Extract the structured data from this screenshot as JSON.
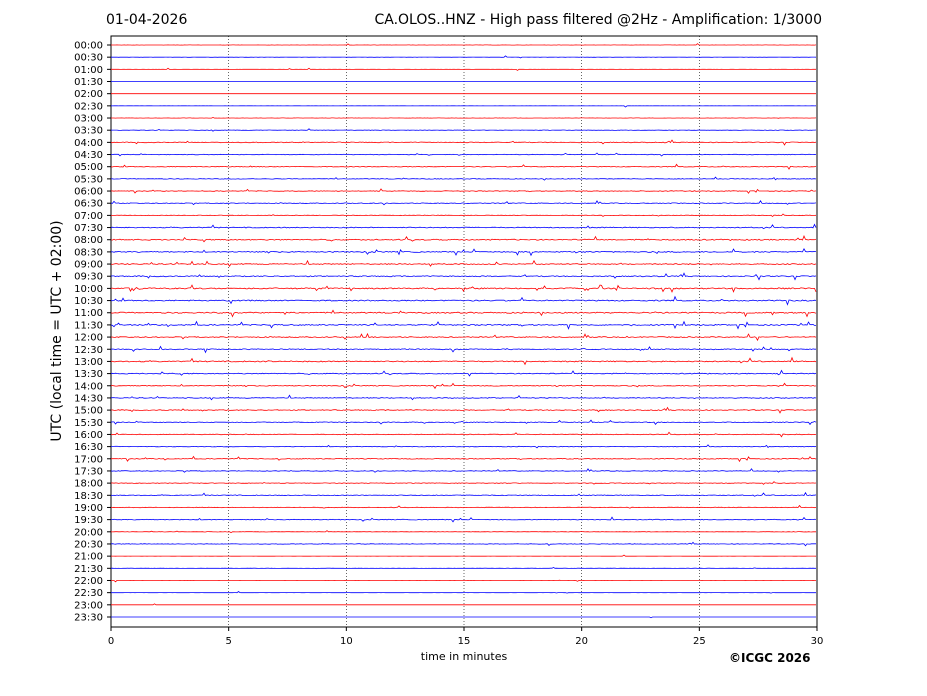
{
  "date": "01-04-2026",
  "title": "CA.OLOS..HNZ - High pass filtered @2Hz - Amplification: 1/3000",
  "copyright": "©ICGC 2026",
  "chart_data": {
    "type": "line",
    "title": "CA.OLOS..HNZ - High pass filtered @2Hz - Amplification: 1/3000",
    "xlabel": "time in minutes",
    "ylabel": "UTC (local time = UTC + 02:00)",
    "xlim": [
      0,
      30
    ],
    "xticks": [
      0,
      5,
      10,
      15,
      20,
      25,
      30
    ],
    "grid": "vertical dotted at x ticks",
    "row_labels": [
      "00:00",
      "00:30",
      "01:00",
      "01:30",
      "02:00",
      "02:30",
      "03:00",
      "03:30",
      "04:00",
      "04:30",
      "05:00",
      "05:30",
      "06:00",
      "06:30",
      "07:00",
      "07:30",
      "08:00",
      "08:30",
      "09:00",
      "09:30",
      "10:00",
      "10:30",
      "11:00",
      "11:30",
      "12:00",
      "12:30",
      "13:00",
      "13:30",
      "14:00",
      "14:30",
      "15:00",
      "15:30",
      "16:00",
      "16:30",
      "17:00",
      "17:30",
      "18:00",
      "18:30",
      "19:00",
      "19:30",
      "20:00",
      "20:30",
      "21:00",
      "21:30",
      "22:00",
      "22:30",
      "23:00",
      "23:30"
    ],
    "row_colors": [
      "#ff0000",
      "#0000ff"
    ],
    "activity": [
      0.15,
      0.2,
      0.1,
      0.05,
      0.05,
      0.05,
      0.2,
      0.35,
      0.6,
      0.45,
      0.55,
      0.45,
      0.5,
      0.55,
      0.45,
      0.7,
      0.85,
      0.8,
      0.75,
      0.8,
      0.95,
      0.9,
      0.95,
      0.85,
      0.7,
      0.7,
      0.85,
      0.7,
      0.65,
      0.6,
      0.65,
      0.6,
      0.5,
      0.45,
      0.6,
      0.5,
      0.45,
      0.6,
      0.45,
      0.55,
      0.3,
      0.4,
      0.15,
      0.15,
      0.1,
      0.1,
      0.05,
      0.05
    ]
  }
}
